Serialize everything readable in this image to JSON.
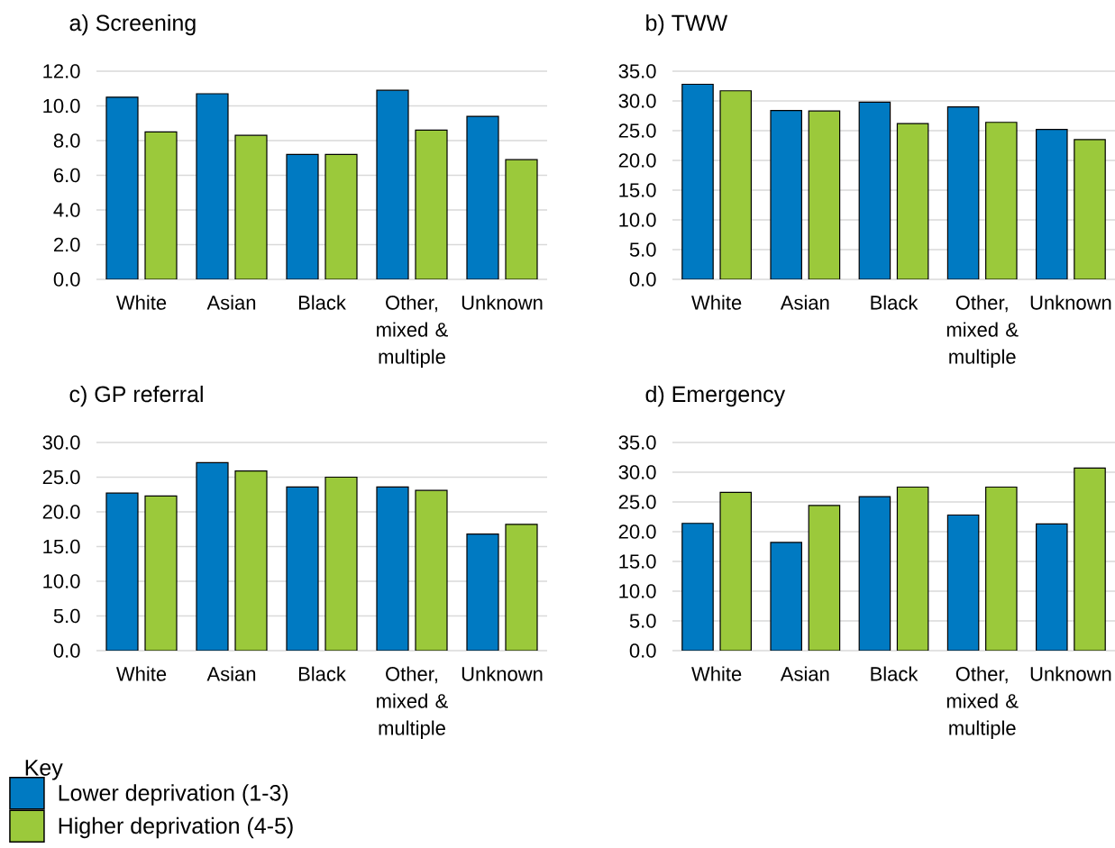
{
  "chart_data": [
    {
      "type": "bar",
      "title": "a) Screening",
      "categories": [
        "White",
        "Asian",
        "Black",
        "Other, mixed & multiple",
        "Unknown"
      ],
      "series": [
        {
          "color": "#007ac2",
          "values": [
            10.5,
            10.7,
            7.2,
            10.9,
            9.4
          ]
        },
        {
          "color": "#9bc93b",
          "values": [
            8.5,
            8.3,
            7.2,
            8.6,
            6.9
          ]
        }
      ],
      "ylim": [
        0,
        12
      ],
      "yticks": [
        {
          "value": 0,
          "label": "0.0"
        },
        {
          "value": 2,
          "label": "2.0"
        },
        {
          "value": 4,
          "label": "4.0"
        },
        {
          "value": 6,
          "label": "6.0"
        },
        {
          "value": 8,
          "label": "8.0"
        },
        {
          "value": 10,
          "label": "10.0"
        },
        {
          "value": 12,
          "label": "12.0"
        }
      ],
      "grid": "y"
    },
    {
      "type": "bar",
      "title": "b) TWW",
      "categories": [
        "White",
        "Asian",
        "Black",
        "Other, mixed & multiple",
        "Unknown"
      ],
      "series": [
        {
          "color": "#007ac2",
          "values": [
            32.8,
            28.4,
            29.8,
            29.0,
            25.2
          ]
        },
        {
          "color": "#9bc93b",
          "values": [
            31.7,
            28.3,
            26.2,
            26.4,
            23.5
          ]
        }
      ],
      "ylim": [
        0,
        35
      ],
      "yticks": [
        {
          "value": 0,
          "label": "0.0"
        },
        {
          "value": 5,
          "label": "5.0"
        },
        {
          "value": 10,
          "label": "10.0"
        },
        {
          "value": 15,
          "label": "15.0"
        },
        {
          "value": 20,
          "label": "20.0"
        },
        {
          "value": 25,
          "label": "25.0"
        },
        {
          "value": 30,
          "label": "30.0"
        },
        {
          "value": 35,
          "label": "35.0"
        }
      ],
      "grid": "y"
    },
    {
      "type": "bar",
      "title": "c) GP referral",
      "categories": [
        "White",
        "Asian",
        "Black",
        "Other, mixed & multiple",
        "Unknown"
      ],
      "series": [
        {
          "name": "Lower deprivation (1-3)",
          "color": "#007ac2",
          "values": [
            22.7,
            27.1,
            23.6,
            23.6,
            16.8
          ]
        },
        {
          "name": "Higher deprivation (4-5)",
          "color": "#9bc93b",
          "values": [
            22.3,
            25.9,
            25.0,
            23.1,
            18.2
          ]
        }
      ],
      "ylim": [
        0,
        30
      ],
      "yticks": [
        {
          "value": 0,
          "label": "0.0"
        },
        {
          "value": 5,
          "label": "5.0"
        },
        {
          "value": 10,
          "label": "10.0"
        },
        {
          "value": 15,
          "label": "15.0"
        },
        {
          "value": 20,
          "label": "20.0"
        },
        {
          "value": 25,
          "label": "25.0"
        },
        {
          "value": 30,
          "label": "30.0"
        }
      ],
      "grid": "y",
      "legend": "bottom left",
      "legend_title": "Key"
    },
    {
      "type": "bar",
      "title": "d) Emergency",
      "categories": [
        "White",
        "Asian",
        "Black",
        "Other, mixed & multiple",
        "Unknown"
      ],
      "series": [
        {
          "color": "#007ac2",
          "values": [
            21.4,
            18.2,
            25.9,
            22.8,
            21.3
          ]
        },
        {
          "color": "#9bc93b",
          "values": [
            26.6,
            24.4,
            27.5,
            27.5,
            30.7
          ]
        }
      ],
      "ylim": [
        0,
        35
      ],
      "yticks": [
        {
          "value": 0,
          "label": "0.0"
        },
        {
          "value": 5,
          "label": "5.0"
        },
        {
          "value": 10,
          "label": "10.0"
        },
        {
          "value": 15,
          "label": "15.0"
        },
        {
          "value": 20,
          "label": "20.0"
        },
        {
          "value": 25,
          "label": "25.0"
        },
        {
          "value": 30,
          "label": "30.0"
        },
        {
          "value": 35,
          "label": "35.0"
        }
      ],
      "grid": "y"
    }
  ]
}
